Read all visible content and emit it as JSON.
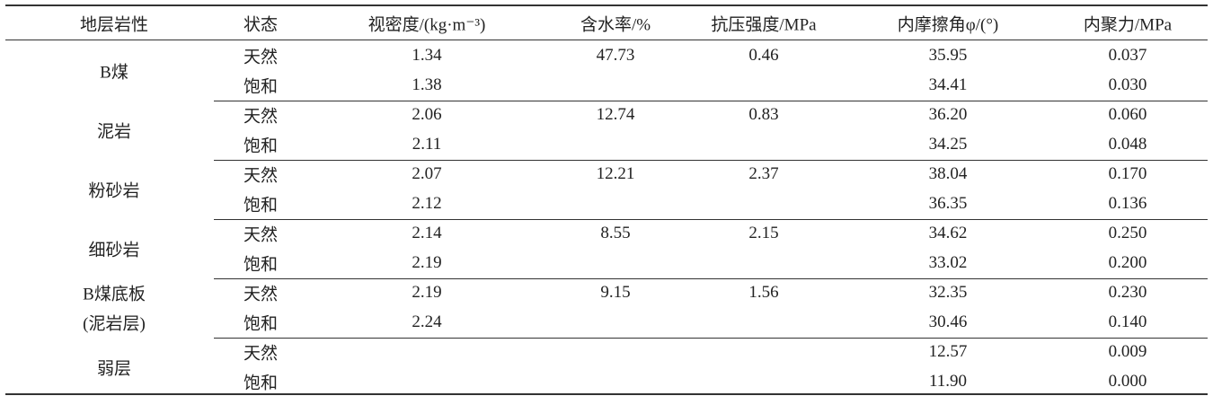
{
  "table": {
    "header": [
      "地层岩性",
      "状态",
      "视密度/(kg·m⁻³)",
      "含水率/%",
      "抗压强度/MPa",
      "内摩擦角φ/(°)",
      "内聚力/MPa"
    ],
    "groups": [
      {
        "name": [
          "B煤"
        ],
        "rows": [
          [
            "天然",
            "1.34",
            "47.73",
            "0.46",
            "35.95",
            "0.037"
          ],
          [
            "饱和",
            "1.38",
            null,
            null,
            "34.41",
            "0.030"
          ]
        ]
      },
      {
        "name": [
          "泥岩"
        ],
        "rows": [
          [
            "天然",
            "2.06",
            "12.74",
            "0.83",
            "36.20",
            "0.060"
          ],
          [
            "饱和",
            "2.11",
            null,
            null,
            "34.25",
            "0.048"
          ]
        ]
      },
      {
        "name": [
          "粉砂岩"
        ],
        "rows": [
          [
            "天然",
            "2.07",
            "12.21",
            "2.37",
            "38.04",
            "0.170"
          ],
          [
            "饱和",
            "2.12",
            null,
            null,
            "36.35",
            "0.136"
          ]
        ]
      },
      {
        "name": [
          "细砂岩"
        ],
        "rows": [
          [
            "天然",
            "2.14",
            "8.55",
            "2.15",
            "34.62",
            "0.250"
          ],
          [
            "饱和",
            "2.19",
            null,
            null,
            "33.02",
            "0.200"
          ]
        ]
      },
      {
        "name": [
          "B煤底板",
          "(泥岩层)"
        ],
        "rows": [
          [
            "天然",
            "2.19",
            "9.15",
            "1.56",
            "32.35",
            "0.230"
          ],
          [
            "饱和",
            "2.24",
            null,
            null,
            "30.46",
            "0.140"
          ]
        ]
      },
      {
        "name": [
          "弱层"
        ],
        "rows": [
          [
            "天然",
            null,
            null,
            null,
            "12.57",
            "0.009"
          ],
          [
            "饱和",
            null,
            null,
            null,
            "11.90",
            "0.000"
          ]
        ]
      }
    ]
  }
}
